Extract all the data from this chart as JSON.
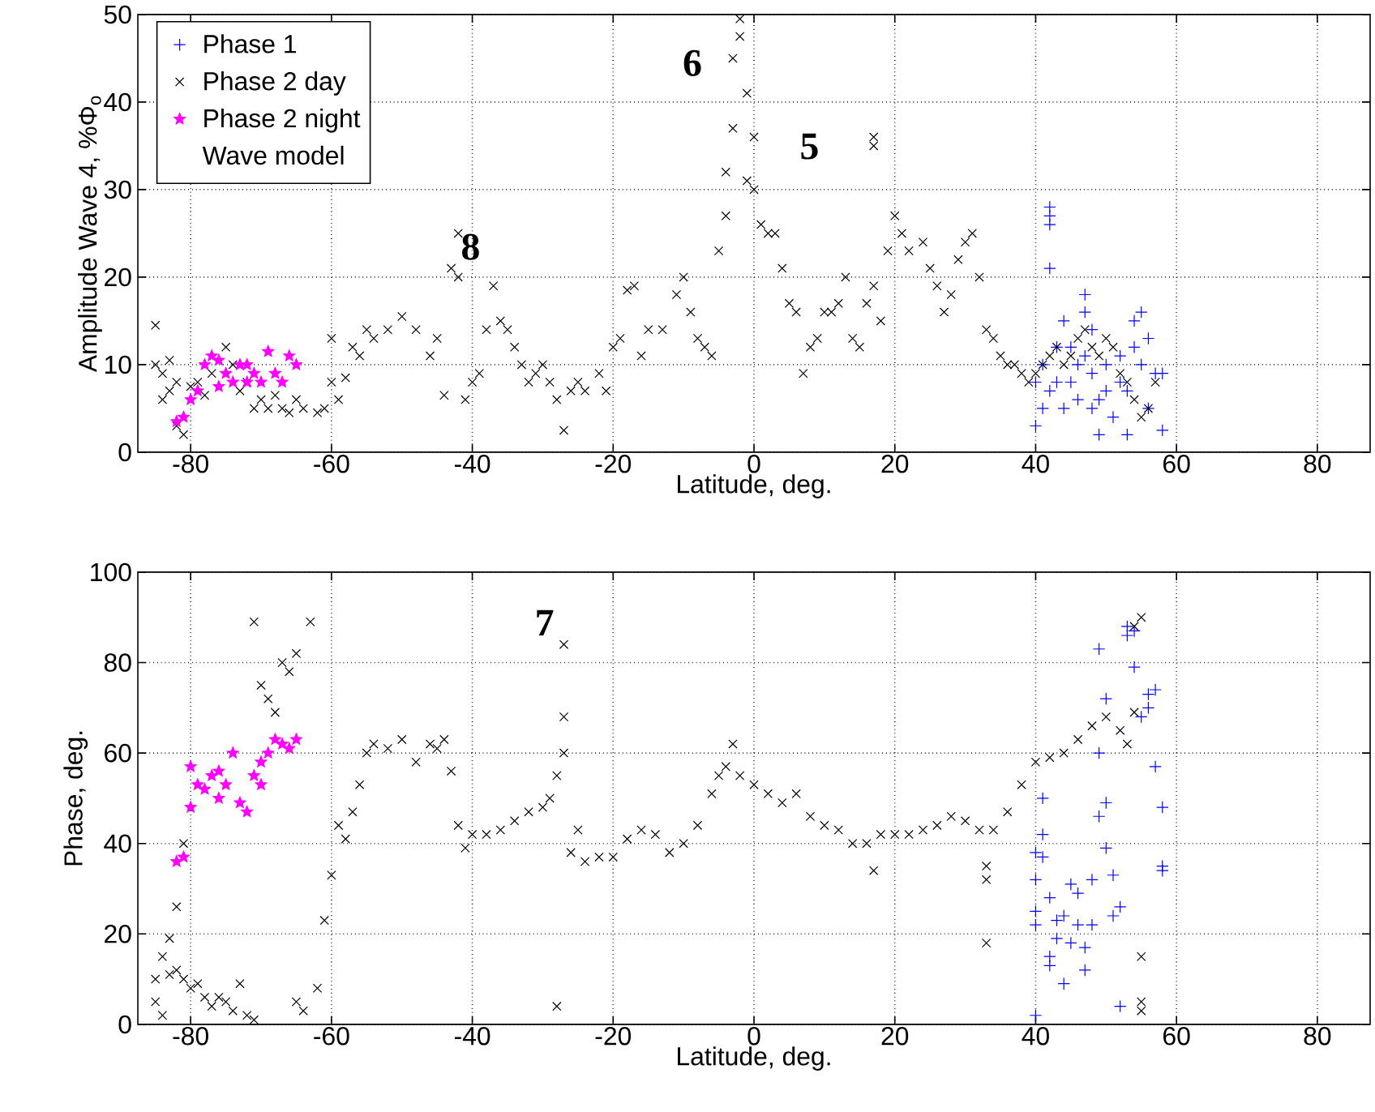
{
  "chart_data": [
    {
      "type": "scatter",
      "xlabel": "Latitude, deg.",
      "ylabel": "Amplitude Wave 4, %Φ$_{o}$",
      "xlim": [
        -87.5,
        87.5
      ],
      "ylim": [
        0,
        50
      ],
      "xticks": [
        -80,
        -60,
        -40,
        -20,
        0,
        20,
        40,
        60,
        80
      ],
      "yticks": [
        0,
        10,
        20,
        30,
        40,
        50
      ],
      "grid": true,
      "legend": "top left",
      "annotations": [
        "8",
        "6",
        "5",
        "Wave model"
      ],
      "series": [
        {
          "name": "Phase 1",
          "color": "#0000ff",
          "marker": "plus",
          "x": [
            40,
            40,
            41,
            41,
            42,
            42,
            42,
            42,
            42,
            43,
            43,
            44,
            44,
            45,
            45,
            46,
            46,
            47,
            47,
            47,
            48,
            48,
            48,
            49,
            49,
            50,
            50,
            51,
            52,
            52,
            53,
            53,
            54,
            54,
            55,
            55,
            56,
            56,
            57,
            58,
            58
          ],
          "values": [
            3,
            8,
            5,
            10,
            27,
            26,
            28,
            21,
            7,
            12,
            8,
            15,
            5,
            8,
            12,
            6,
            10,
            18,
            16,
            11,
            14,
            9,
            5,
            2,
            6,
            10,
            7,
            4,
            8,
            11,
            2,
            7,
            15,
            12,
            16,
            10,
            13,
            5,
            9,
            2.5,
            9
          ]
        },
        {
          "name": "Phase 2 day",
          "color": "#000000",
          "marker": "cross",
          "x": [
            -85,
            -85,
            -84,
            -84,
            -83,
            -83,
            -82,
            -82,
            -81,
            -80,
            -79,
            -78,
            -77,
            -75,
            -74,
            -73,
            -72,
            -71,
            -70,
            -69,
            -68,
            -67,
            -66,
            -65,
            -64,
            -62,
            -61,
            -60,
            -60,
            -59,
            -58,
            -57,
            -56,
            -55,
            -54,
            -52,
            -50,
            -48,
            -46,
            -45,
            -44,
            -43,
            -42,
            -42,
            -41,
            -40,
            -39,
            -38,
            -37,
            -36,
            -35,
            -34,
            -33,
            -32,
            -31,
            -30,
            -29,
            -28,
            -27,
            -26,
            -25,
            -24,
            -22,
            -21,
            -20,
            -19,
            -18,
            -17,
            -16,
            -15,
            -13,
            -11,
            -10,
            -9,
            -8,
            -7,
            -6,
            -5,
            -4,
            -4,
            -3,
            -3,
            -2,
            -2,
            -1,
            -1,
            0,
            0,
            1,
            2,
            3,
            4,
            5,
            6,
            7,
            8,
            9,
            10,
            11,
            12,
            13,
            14,
            15,
            16,
            17,
            17,
            17,
            18,
            19,
            20,
            21,
            22,
            24,
            25,
            26,
            27,
            28,
            29,
            30,
            31,
            32,
            33,
            34,
            35,
            36,
            37,
            38,
            39,
            40,
            41,
            42,
            43,
            44,
            45,
            46,
            47,
            48,
            49,
            50,
            51,
            52,
            53,
            54,
            55,
            56,
            57
          ],
          "values": [
            14.5,
            10,
            6,
            9,
            10.5,
            7,
            8,
            3,
            2,
            7.5,
            8,
            6.5,
            9,
            12,
            10,
            7,
            8,
            5,
            6,
            5,
            6.5,
            5,
            4.5,
            6,
            5,
            4.5,
            5,
            13,
            8,
            6,
            8.5,
            12,
            11,
            14,
            13,
            14,
            15.5,
            14,
            11,
            13,
            6.5,
            21,
            25,
            20,
            6,
            8,
            9,
            14,
            19,
            15,
            14,
            12,
            10,
            8,
            9,
            10,
            8,
            6,
            2.5,
            7,
            8,
            7,
            9,
            7,
            12,
            13,
            18.5,
            19,
            11,
            14,
            14,
            18,
            20,
            16,
            13,
            12,
            11,
            23,
            27,
            32,
            37,
            45,
            47.5,
            49.5,
            41,
            31,
            36,
            30,
            26,
            25,
            25,
            21,
            17,
            16,
            9,
            12,
            13,
            16,
            16,
            17,
            20,
            13,
            12,
            17,
            36,
            35,
            19,
            15,
            23,
            27,
            25,
            23,
            24,
            21,
            19,
            16,
            18,
            22,
            24,
            25,
            20,
            14,
            13,
            11,
            10,
            10,
            9,
            8,
            9,
            10,
            11,
            12,
            10,
            11,
            13,
            14,
            12,
            11,
            13,
            12,
            9,
            8,
            6,
            4,
            5,
            8
          ]
        },
        {
          "name": "Phase 2 night",
          "color": "#ff00ff",
          "marker": "star",
          "x": [
            -82,
            -81,
            -80,
            -79,
            -78,
            -77,
            -76,
            -75,
            -74,
            -73,
            -72,
            -71,
            -70,
            -69,
            -68,
            -67,
            -66,
            -65,
            -72,
            -76
          ],
          "values": [
            3.5,
            4,
            6,
            7,
            10,
            11,
            10.5,
            9,
            8,
            10,
            8,
            9,
            8,
            11.5,
            9,
            8,
            11,
            10,
            10,
            7.5
          ]
        }
      ]
    },
    {
      "type": "scatter",
      "xlabel": "Latitude, deg.",
      "ylabel": "Phase, deg.",
      "xlim": [
        -87.5,
        87.5
      ],
      "ylim": [
        0,
        100
      ],
      "xticks": [
        -80,
        -60,
        -40,
        -20,
        0,
        20,
        40,
        60,
        80
      ],
      "yticks": [
        0,
        20,
        40,
        60,
        80,
        100
      ],
      "grid": true,
      "annotations": [
        "7"
      ],
      "series": [
        {
          "color": "#0000ff",
          "marker": "plus",
          "x": [
            40,
            40,
            40,
            40,
            40,
            41,
            41,
            41,
            42,
            42,
            42,
            43,
            43,
            44,
            44,
            45,
            45,
            46,
            46,
            47,
            47,
            48,
            48,
            49,
            49,
            49,
            50,
            50,
            50,
            51,
            51,
            52,
            52,
            53,
            53,
            54,
            54,
            55,
            56,
            56,
            57,
            57,
            58,
            58,
            58
          ],
          "values": [
            2,
            22,
            25,
            32,
            38,
            50,
            42,
            37,
            15,
            13,
            28,
            23,
            19,
            9,
            24,
            31,
            18,
            29,
            22,
            12,
            17,
            32,
            22,
            83,
            60,
            46,
            72,
            49,
            39,
            33,
            24,
            26,
            4,
            88,
            86,
            87,
            79,
            68,
            73,
            70,
            74,
            57,
            48,
            35,
            34
          ]
        },
        {
          "color": "#000000",
          "marker": "cross",
          "x": [
            -85,
            -85,
            -84,
            -84,
            -83,
            -83,
            -82,
            -82,
            -81,
            -81,
            -80,
            -79,
            -78,
            -77,
            -76,
            -75,
            -74,
            -73,
            -72,
            -71,
            -71,
            -70,
            -69,
            -68,
            -67,
            -66,
            -65,
            -65,
            -64,
            -63,
            -62,
            -61,
            -60,
            -59,
            -58,
            -57,
            -56,
            -55,
            -54,
            -52,
            -50,
            -48,
            -46,
            -45,
            -44,
            -43,
            -42,
            -41,
            -40,
            -38,
            -36,
            -34,
            -32,
            -30,
            -29,
            -28,
            -27,
            -27,
            -27,
            -28,
            -26,
            -25,
            -24,
            -22,
            -20,
            -18,
            -16,
            -14,
            -12,
            -10,
            -8,
            -6,
            -5,
            -4,
            -3,
            -2,
            0,
            2,
            4,
            6,
            8,
            10,
            12,
            14,
            16,
            17,
            18,
            20,
            22,
            24,
            26,
            28,
            30,
            32,
            33,
            33,
            33,
            34,
            36,
            38,
            40,
            42,
            44,
            46,
            48,
            50,
            52,
            54,
            54,
            55,
            55,
            55,
            55,
            53
          ],
          "values": [
            5,
            10,
            15,
            2,
            19,
            11,
            12,
            26,
            40,
            10,
            8,
            9,
            6,
            4,
            6,
            5,
            3,
            9,
            2,
            89,
            1,
            75,
            72,
            69,
            80,
            78,
            82,
            5,
            3,
            89,
            8,
            23,
            33,
            44,
            41,
            47,
            53,
            60,
            62,
            61,
            63,
            58,
            62,
            61,
            63,
            56,
            44,
            39,
            42,
            42,
            43,
            45,
            47,
            48,
            50,
            55,
            60,
            68,
            84,
            4,
            38,
            43,
            36,
            37,
            37,
            41,
            43,
            42,
            38,
            40,
            44,
            51,
            55,
            57,
            62,
            55,
            53,
            51,
            49,
            51,
            46,
            44,
            43,
            40,
            40,
            34,
            42,
            42,
            42,
            43,
            44,
            46,
            45,
            43,
            35,
            32,
            18,
            43,
            47,
            53,
            58,
            59,
            60,
            63,
            66,
            68,
            65,
            69,
            88,
            90,
            15,
            5,
            3,
            62
          ]
        },
        {
          "color": "#ff00ff",
          "marker": "star",
          "x": [
            -82,
            -81,
            -80,
            -80,
            -79,
            -78,
            -77,
            -76,
            -75,
            -74,
            -73,
            -72,
            -71,
            -70,
            -69,
            -68,
            -67,
            -66,
            -65,
            -70,
            -76
          ],
          "values": [
            36,
            37,
            48,
            57,
            53,
            52,
            55,
            56,
            53,
            60,
            49,
            47,
            55,
            53,
            60,
            63,
            62,
            61,
            63,
            58,
            50
          ]
        }
      ]
    }
  ]
}
